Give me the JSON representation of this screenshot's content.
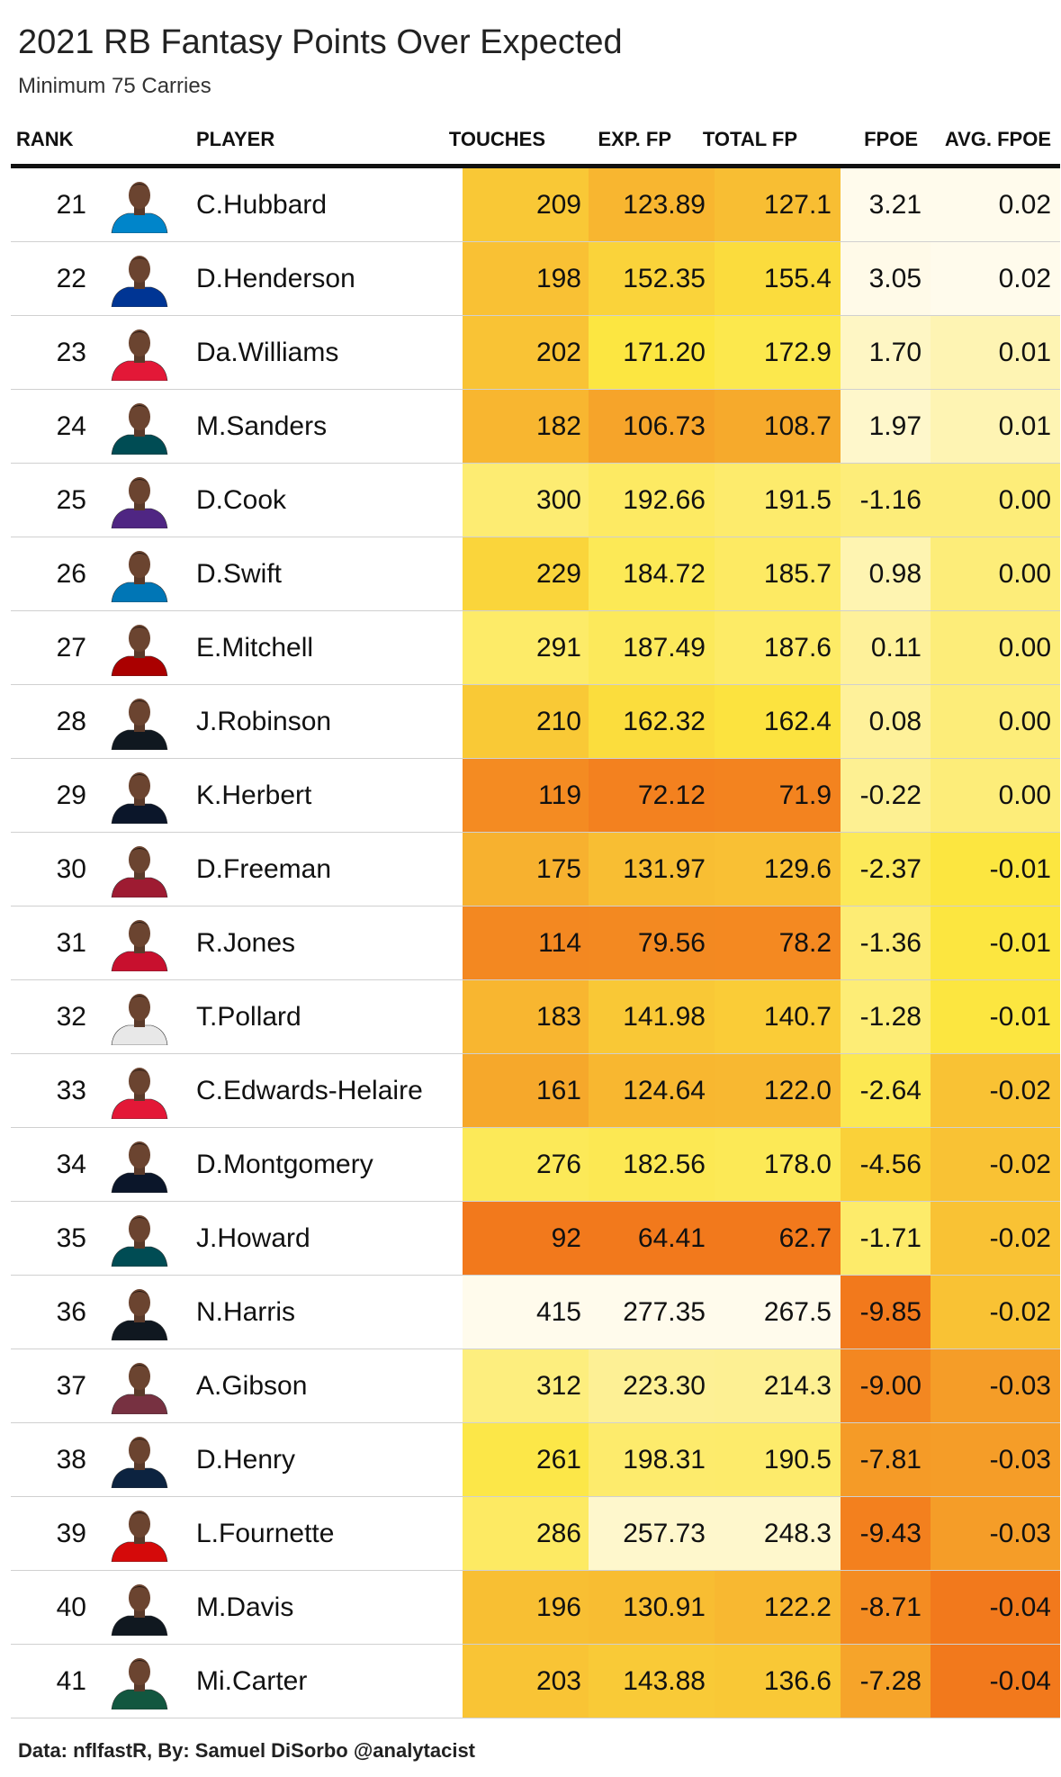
{
  "chart_data": {
    "type": "table",
    "title": "2021 RB Fantasy Points Over Expected",
    "subtitle": "Minimum 75 Carries",
    "columns": [
      "RANK",
      "PLAYER",
      "TOUCHES",
      "EXP. FP",
      "TOTAL FP",
      "FPOE",
      "AVG. FPOE"
    ],
    "rows": [
      {
        "rank": "21",
        "player": "C.Hubbard",
        "touches": 209,
        "exp_fp": "123.89",
        "total_fp": "127.1",
        "fpoe": "3.21",
        "avg_fpoe": "0.02",
        "jersey": "#0085CA"
      },
      {
        "rank": "22",
        "player": "D.Henderson",
        "touches": 198,
        "exp_fp": "152.35",
        "total_fp": "155.4",
        "fpoe": "3.05",
        "avg_fpoe": "0.02",
        "jersey": "#003594"
      },
      {
        "rank": "23",
        "player": "Da.Williams",
        "touches": 202,
        "exp_fp": "171.20",
        "total_fp": "172.9",
        "fpoe": "1.70",
        "avg_fpoe": "0.01",
        "jersey": "#E31837"
      },
      {
        "rank": "24",
        "player": "M.Sanders",
        "touches": 182,
        "exp_fp": "106.73",
        "total_fp": "108.7",
        "fpoe": "1.97",
        "avg_fpoe": "0.01",
        "jersey": "#004C54"
      },
      {
        "rank": "25",
        "player": "D.Cook",
        "touches": 300,
        "exp_fp": "192.66",
        "total_fp": "191.5",
        "fpoe": "-1.16",
        "avg_fpoe": "0.00",
        "jersey": "#4F2683"
      },
      {
        "rank": "26",
        "player": "D.Swift",
        "touches": 229,
        "exp_fp": "184.72",
        "total_fp": "185.7",
        "fpoe": "0.98",
        "avg_fpoe": "0.00",
        "jersey": "#0076B6"
      },
      {
        "rank": "27",
        "player": "E.Mitchell",
        "touches": 291,
        "exp_fp": "187.49",
        "total_fp": "187.6",
        "fpoe": "0.11",
        "avg_fpoe": "0.00",
        "jersey": "#AA0000"
      },
      {
        "rank": "28",
        "player": "J.Robinson",
        "touches": 210,
        "exp_fp": "162.32",
        "total_fp": "162.4",
        "fpoe": "0.08",
        "avg_fpoe": "0.00",
        "jersey": "#101820"
      },
      {
        "rank": "29",
        "player": "K.Herbert",
        "touches": 119,
        "exp_fp": "72.12",
        "total_fp": "71.9",
        "fpoe": "-0.22",
        "avg_fpoe": "0.00",
        "jersey": "#0B162A"
      },
      {
        "rank": "30",
        "player": "D.Freeman",
        "touches": 175,
        "exp_fp": "131.97",
        "total_fp": "129.6",
        "fpoe": "-2.37",
        "avg_fpoe": "-0.01",
        "jersey": "#9E1B32"
      },
      {
        "rank": "31",
        "player": "R.Jones",
        "touches": 114,
        "exp_fp": "79.56",
        "total_fp": "78.2",
        "fpoe": "-1.36",
        "avg_fpoe": "-0.01",
        "jersey": "#C8102E"
      },
      {
        "rank": "32",
        "player": "T.Pollard",
        "touches": 183,
        "exp_fp": "141.98",
        "total_fp": "140.7",
        "fpoe": "-1.28",
        "avg_fpoe": "-0.01",
        "jersey": "#E8E8E8"
      },
      {
        "rank": "33",
        "player": "C.Edwards-Helaire",
        "touches": 161,
        "exp_fp": "124.64",
        "total_fp": "122.0",
        "fpoe": "-2.64",
        "avg_fpoe": "-0.02",
        "jersey": "#E31837"
      },
      {
        "rank": "34",
        "player": "D.Montgomery",
        "touches": 276,
        "exp_fp": "182.56",
        "total_fp": "178.0",
        "fpoe": "-4.56",
        "avg_fpoe": "-0.02",
        "jersey": "#0B162A"
      },
      {
        "rank": "35",
        "player": "J.Howard",
        "touches": 92,
        "exp_fp": "64.41",
        "total_fp": "62.7",
        "fpoe": "-1.71",
        "avg_fpoe": "-0.02",
        "jersey": "#004C54"
      },
      {
        "rank": "36",
        "player": "N.Harris",
        "touches": 415,
        "exp_fp": "277.35",
        "total_fp": "267.5",
        "fpoe": "-9.85",
        "avg_fpoe": "-0.02",
        "jersey": "#101820"
      },
      {
        "rank": "37",
        "player": "A.Gibson",
        "touches": 312,
        "exp_fp": "223.30",
        "total_fp": "214.3",
        "fpoe": "-9.00",
        "avg_fpoe": "-0.03",
        "jersey": "#773141"
      },
      {
        "rank": "38",
        "player": "D.Henry",
        "touches": 261,
        "exp_fp": "198.31",
        "total_fp": "190.5",
        "fpoe": "-7.81",
        "avg_fpoe": "-0.03",
        "jersey": "#0C2340"
      },
      {
        "rank": "39",
        "player": "L.Fournette",
        "touches": 286,
        "exp_fp": "257.73",
        "total_fp": "248.3",
        "fpoe": "-9.43",
        "avg_fpoe": "-0.03",
        "jersey": "#D50A0A"
      },
      {
        "rank": "40",
        "player": "M.Davis",
        "touches": 196,
        "exp_fp": "130.91",
        "total_fp": "122.2",
        "fpoe": "-8.71",
        "avg_fpoe": "-0.04",
        "jersey": "#101820"
      },
      {
        "rank": "41",
        "player": "Mi.Carter",
        "touches": 203,
        "exp_fp": "143.88",
        "total_fp": "136.6",
        "fpoe": "-7.28",
        "avg_fpoe": "-0.04",
        "jersey": "#125740"
      }
    ],
    "color_scale": {
      "low": "#F2791C",
      "mid": "#FCE640",
      "high": "#FFFBEC"
    }
  },
  "footer": "Data: nflfastR, By: Samuel DiSorbo @analytacist"
}
